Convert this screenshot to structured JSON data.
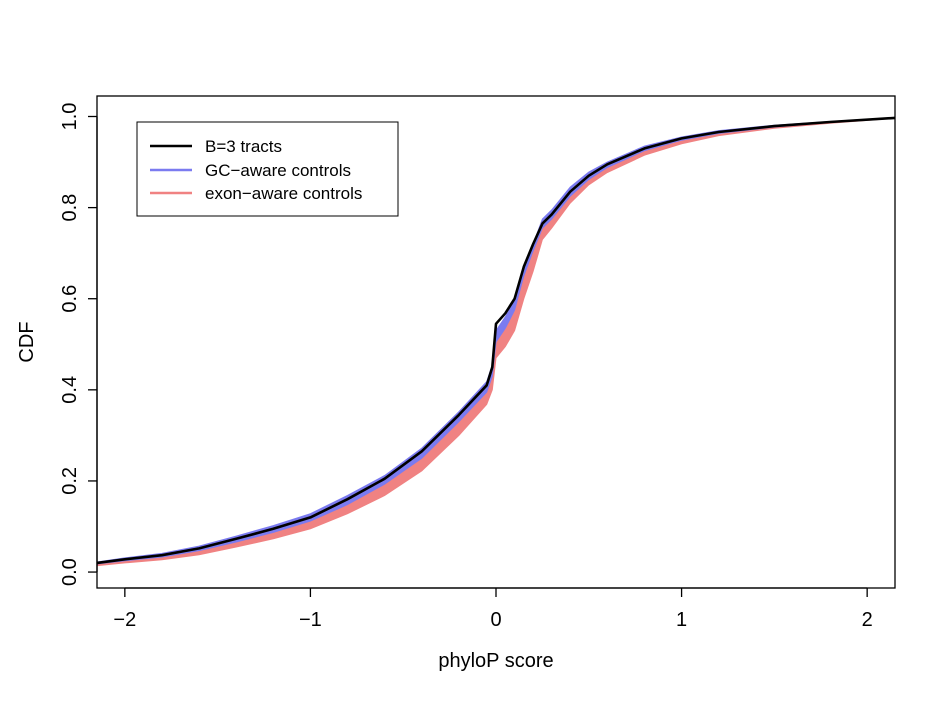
{
  "chart_data": {
    "type": "line",
    "title": "",
    "xlabel": "phyloP score",
    "ylabel": "CDF",
    "xlim": [
      -2.15,
      2.15
    ],
    "ylim": [
      -0.035,
      1.045
    ],
    "xticks": [
      {
        "value": -2,
        "label": "−2"
      },
      {
        "value": -1,
        "label": "−1"
      },
      {
        "value": 0,
        "label": "0"
      },
      {
        "value": 1,
        "label": "1"
      },
      {
        "value": 2,
        "label": "2"
      }
    ],
    "yticks": [
      {
        "value": 0.0,
        "label": "0.0"
      },
      {
        "value": 0.2,
        "label": "0.2"
      },
      {
        "value": 0.4,
        "label": "0.4"
      },
      {
        "value": 0.6,
        "label": "0.6"
      },
      {
        "value": 0.8,
        "label": "0.8"
      },
      {
        "value": 1.0,
        "label": "1.0"
      }
    ],
    "grid": false,
    "legend": {
      "position": "top-left",
      "entries": [
        {
          "label": "B=3 tracts",
          "color": "#000000"
        },
        {
          "label": "GC−aware controls",
          "color": "#7b7bf0"
        },
        {
          "label": "exon−aware controls",
          "color": "#f08282"
        }
      ]
    },
    "series": [
      {
        "name": "B=3 tracts",
        "kind": "line",
        "color": "#000000",
        "x": [
          -2.15,
          -2.0,
          -1.8,
          -1.6,
          -1.4,
          -1.2,
          -1.0,
          -0.8,
          -0.6,
          -0.4,
          -0.2,
          -0.05,
          -0.02,
          0.0,
          0.05,
          0.1,
          0.15,
          0.2,
          0.25,
          0.3,
          0.4,
          0.5,
          0.6,
          0.8,
          1.0,
          1.2,
          1.5,
          1.8,
          2.15
        ],
        "y": [
          0.02,
          0.028,
          0.037,
          0.052,
          0.073,
          0.095,
          0.12,
          0.16,
          0.205,
          0.265,
          0.345,
          0.41,
          0.45,
          0.545,
          0.568,
          0.6,
          0.67,
          0.72,
          0.765,
          0.785,
          0.835,
          0.87,
          0.895,
          0.93,
          0.952,
          0.966,
          0.979,
          0.988,
          0.997
        ]
      },
      {
        "name": "GC−aware controls",
        "kind": "band",
        "color": "#7b7bf0",
        "x": [
          -2.15,
          -2.0,
          -1.8,
          -1.6,
          -1.4,
          -1.2,
          -1.0,
          -0.8,
          -0.6,
          -0.4,
          -0.2,
          -0.05,
          -0.02,
          0.0,
          0.05,
          0.1,
          0.15,
          0.2,
          0.25,
          0.3,
          0.4,
          0.5,
          0.6,
          0.8,
          1.0,
          1.2,
          1.5,
          1.8,
          2.15
        ],
        "lower": [
          0.018,
          0.025,
          0.033,
          0.047,
          0.066,
          0.087,
          0.112,
          0.148,
          0.193,
          0.25,
          0.33,
          0.395,
          0.43,
          0.505,
          0.535,
          0.575,
          0.65,
          0.705,
          0.755,
          0.775,
          0.825,
          0.862,
          0.888,
          0.925,
          0.948,
          0.963,
          0.977,
          0.987,
          0.996
        ],
        "upper": [
          0.022,
          0.031,
          0.041,
          0.057,
          0.079,
          0.102,
          0.128,
          0.168,
          0.212,
          0.272,
          0.352,
          0.418,
          0.455,
          0.53,
          0.56,
          0.595,
          0.67,
          0.72,
          0.775,
          0.795,
          0.845,
          0.878,
          0.9,
          0.935,
          0.955,
          0.969,
          0.981,
          0.989,
          0.998
        ]
      },
      {
        "name": "exon−aware controls",
        "kind": "band",
        "color": "#f08282",
        "x": [
          -2.15,
          -2.0,
          -1.8,
          -1.6,
          -1.4,
          -1.2,
          -1.0,
          -0.8,
          -0.6,
          -0.4,
          -0.2,
          -0.05,
          -0.02,
          0.0,
          0.05,
          0.1,
          0.15,
          0.2,
          0.25,
          0.3,
          0.4,
          0.5,
          0.6,
          0.8,
          1.0,
          1.2,
          1.5,
          1.8,
          2.15
        ],
        "lower": [
          0.014,
          0.02,
          0.027,
          0.038,
          0.055,
          0.073,
          0.095,
          0.128,
          0.168,
          0.222,
          0.3,
          0.368,
          0.4,
          0.47,
          0.495,
          0.53,
          0.6,
          0.66,
          0.73,
          0.755,
          0.81,
          0.85,
          0.877,
          0.915,
          0.94,
          0.958,
          0.974,
          0.985,
          0.996
        ],
        "upper": [
          0.018,
          0.025,
          0.033,
          0.047,
          0.066,
          0.087,
          0.112,
          0.148,
          0.193,
          0.25,
          0.33,
          0.395,
          0.43,
          0.505,
          0.535,
          0.575,
          0.65,
          0.705,
          0.755,
          0.775,
          0.825,
          0.862,
          0.888,
          0.925,
          0.948,
          0.963,
          0.977,
          0.987,
          0.996
        ]
      }
    ]
  }
}
